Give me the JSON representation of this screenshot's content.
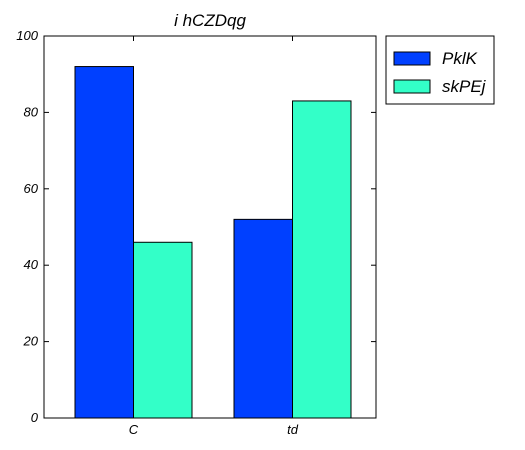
{
  "chart_data": {
    "type": "bar",
    "title": "i  hCZDqg",
    "xlabel": "",
    "ylabel": "",
    "categories": [
      "C",
      "td"
    ],
    "series": [
      {
        "name": "PklK",
        "values": [
          92,
          52
        ],
        "color": "#0040ff"
      },
      {
        "name": "skPEj",
        "values": [
          46,
          83
        ],
        "color": "#33ffc8"
      }
    ],
    "ylim": [
      0,
      100
    ],
    "yticks": [
      0,
      20,
      40,
      60,
      80,
      100
    ],
    "grid": false,
    "legend_position": "outside-top-right"
  }
}
